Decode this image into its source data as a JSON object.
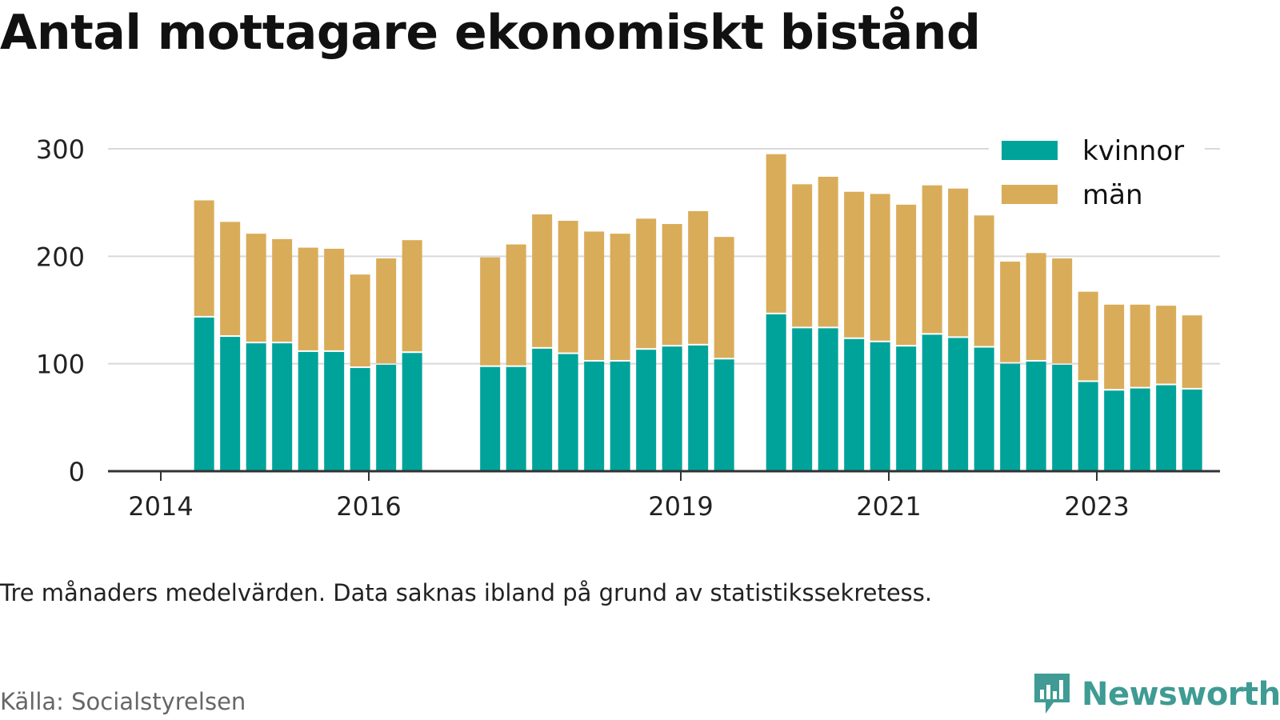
{
  "title": "Antal mottagare ekonomiskt bistånd",
  "note": "Tre månaders medelvärden. Data saknas ibland på grund av statistikssekretess.",
  "source": "Källa: Socialstyrelsen",
  "brand": {
    "name": "Newsworthy",
    "icon": "newsworthy-logo-icon",
    "color": "#3f9b93"
  },
  "colors": {
    "kvinnor": "#00a39a",
    "man": "#d9ac59",
    "grid": "#d9d9d9",
    "axis": "#333333"
  },
  "chart_data": {
    "type": "bar",
    "stacked": true,
    "xlabel": "",
    "ylabel": "",
    "ylim": [
      0,
      300
    ],
    "yticks": [
      0,
      100,
      200,
      300
    ],
    "xticks": [
      "2014",
      "2016",
      "2019",
      "2021",
      "2023"
    ],
    "grid": true,
    "legend_position": "top-right",
    "legend": [
      "kvinnor",
      "män"
    ],
    "x": [
      "2014-06",
      "2014-09",
      "2014-12",
      "2015-03",
      "2015-06",
      "2015-09",
      "2015-12",
      "2016-03",
      "2016-06",
      "2017-03",
      "2017-06",
      "2017-09",
      "2017-12",
      "2018-03",
      "2018-06",
      "2018-09",
      "2018-12",
      "2019-03",
      "2019-06",
      "2019-12",
      "2020-03",
      "2020-06",
      "2020-09",
      "2020-12",
      "2021-03",
      "2021-06",
      "2021-09",
      "2021-12",
      "2022-03",
      "2022-06",
      "2022-09",
      "2022-12",
      "2023-03",
      "2023-06",
      "2023-09",
      "2023-12"
    ],
    "series": [
      {
        "name": "kvinnor",
        "values": [
          143,
          125,
          119,
          119,
          111,
          111,
          96,
          99,
          110,
          97,
          97,
          114,
          109,
          102,
          102,
          113,
          116,
          117,
          104,
          146,
          133,
          133,
          123,
          120,
          116,
          127,
          124,
          115,
          100,
          102,
          99,
          83,
          75,
          77,
          80,
          76
        ]
      },
      {
        "name": "män",
        "values": [
          109,
          107,
          102,
          97,
          97,
          96,
          87,
          99,
          105,
          102,
          114,
          125,
          124,
          121,
          119,
          122,
          114,
          125,
          114,
          149,
          134,
          141,
          137,
          138,
          132,
          139,
          139,
          123,
          95,
          101,
          99,
          84,
          80,
          78,
          74,
          69
        ]
      }
    ]
  }
}
